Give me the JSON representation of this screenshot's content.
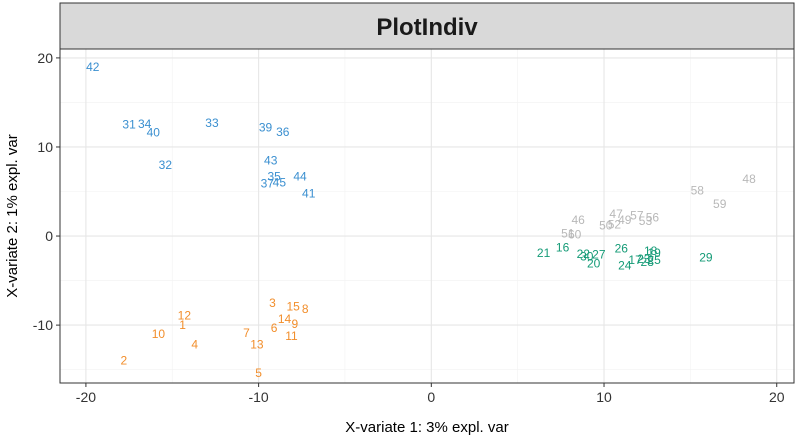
{
  "chart_data": {
    "type": "scatter",
    "title": "PlotIndiv",
    "xlabel": "X-variate 1: 3% expl. var",
    "ylabel": "X-variate 2: 1% expl. var",
    "xlim": [
      -21.5,
      21
    ],
    "ylim": [
      -16.5,
      21
    ],
    "x_ticks": [
      -20,
      -10,
      0,
      10,
      20
    ],
    "y_ticks": [
      -10,
      0,
      10,
      20
    ],
    "x_minor": [
      -15,
      -5,
      5,
      15
    ],
    "y_minor": [
      -15,
      -5,
      5,
      15
    ],
    "grid": true,
    "series": [
      {
        "name": "group-orange",
        "color": "#f28e2b",
        "points": [
          {
            "label": "2",
            "x": -17.8,
            "y": -14.0
          },
          {
            "label": "10",
            "x": -15.8,
            "y": -11.0
          },
          {
            "label": "12",
            "x": -14.3,
            "y": -8.9
          },
          {
            "label": "1",
            "x": -14.4,
            "y": -10.0
          },
          {
            "label": "4",
            "x": -13.7,
            "y": -12.2
          },
          {
            "label": "7",
            "x": -10.7,
            "y": -10.9
          },
          {
            "label": "13",
            "x": -10.1,
            "y": -12.2
          },
          {
            "label": "5",
            "x": -10.0,
            "y": -15.4
          },
          {
            "label": "3",
            "x": -9.2,
            "y": -7.5
          },
          {
            "label": "15",
            "x": -8.0,
            "y": -7.9
          },
          {
            "label": "8",
            "x": -7.3,
            "y": -8.2
          },
          {
            "label": "14",
            "x": -8.5,
            "y": -9.3
          },
          {
            "label": "9",
            "x": -7.9,
            "y": -9.9
          },
          {
            "label": "6",
            "x": -9.1,
            "y": -10.3
          },
          {
            "label": "11",
            "x": -8.1,
            "y": -11.2
          }
        ]
      },
      {
        "name": "group-blue",
        "color": "#3a8fd0",
        "points": [
          {
            "label": "42",
            "x": -19.6,
            "y": 19.0
          },
          {
            "label": "31",
            "x": -17.5,
            "y": 12.5
          },
          {
            "label": "34",
            "x": -16.6,
            "y": 12.6
          },
          {
            "label": "40",
            "x": -16.1,
            "y": 11.6
          },
          {
            "label": "33",
            "x": -12.7,
            "y": 12.7
          },
          {
            "label": "32",
            "x": -15.4,
            "y": 8.0
          },
          {
            "label": "39",
            "x": -9.6,
            "y": 12.2
          },
          {
            "label": "36",
            "x": -8.6,
            "y": 11.7
          },
          {
            "label": "43",
            "x": -9.3,
            "y": 8.5
          },
          {
            "label": "35",
            "x": -9.1,
            "y": 6.7
          },
          {
            "label": "37",
            "x": -9.5,
            "y": 5.9
          },
          {
            "label": "45",
            "x": -8.8,
            "y": 6.0
          },
          {
            "label": "44",
            "x": -7.6,
            "y": 6.7
          },
          {
            "label": "41",
            "x": -7.1,
            "y": 4.8
          }
        ]
      },
      {
        "name": "group-gray",
        "color": "#b8b8b8",
        "points": [
          {
            "label": "48",
            "x": 18.4,
            "y": 6.4
          },
          {
            "label": "58",
            "x": 15.4,
            "y": 5.1
          },
          {
            "label": "59",
            "x": 16.7,
            "y": 3.6
          },
          {
            "label": "47",
            "x": 10.7,
            "y": 2.5
          },
          {
            "label": "57",
            "x": 11.9,
            "y": 2.3
          },
          {
            "label": "49",
            "x": 11.2,
            "y": 1.8
          },
          {
            "label": "56",
            "x": 12.8,
            "y": 2.1
          },
          {
            "label": "46",
            "x": 8.5,
            "y": 1.8
          },
          {
            "label": "50",
            "x": 10.1,
            "y": 1.2
          },
          {
            "label": "52",
            "x": 10.6,
            "y": 1.3
          },
          {
            "label": "53",
            "x": 12.4,
            "y": 1.7
          },
          {
            "label": "51",
            "x": 7.9,
            "y": 0.3
          },
          {
            "label": "60",
            "x": 8.3,
            "y": 0.2
          }
        ]
      },
      {
        "name": "group-green",
        "color": "#159b77",
        "points": [
          {
            "label": "21",
            "x": 6.5,
            "y": -1.9
          },
          {
            "label": "16",
            "x": 7.6,
            "y": -1.3
          },
          {
            "label": "22",
            "x": 8.8,
            "y": -2.0
          },
          {
            "label": "30",
            "x": 9.0,
            "y": -2.3
          },
          {
            "label": "27",
            "x": 9.7,
            "y": -2.1
          },
          {
            "label": "20",
            "x": 9.4,
            "y": -3.1
          },
          {
            "label": "26",
            "x": 11.0,
            "y": -1.4
          },
          {
            "label": "24",
            "x": 11.2,
            "y": -3.3
          },
          {
            "label": "17",
            "x": 11.8,
            "y": -2.7
          },
          {
            "label": "23",
            "x": 12.3,
            "y": -2.6
          },
          {
            "label": "28",
            "x": 12.5,
            "y": -2.9
          },
          {
            "label": "25",
            "x": 12.9,
            "y": -2.7
          },
          {
            "label": "18",
            "x": 12.7,
            "y": -1.7
          },
          {
            "label": "19",
            "x": 12.9,
            "y": -1.9
          },
          {
            "label": "29",
            "x": 15.9,
            "y": -2.4
          }
        ]
      }
    ]
  }
}
